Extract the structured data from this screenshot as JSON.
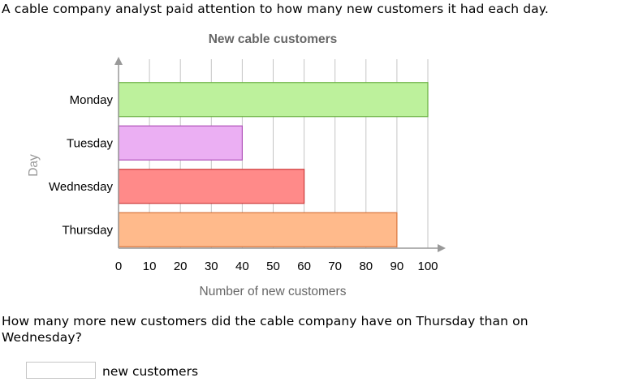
{
  "intro_text": "A cable company analyst paid attention to how many new customers it had each day.",
  "question_text": "How many more new customers did the cable company have on Thursday than on Wednesday?",
  "answer": {
    "value": "",
    "unit_label": "new customers"
  },
  "chart_data": {
    "type": "bar",
    "orientation": "horizontal",
    "title": "New cable customers",
    "xlabel": "Number of new customers",
    "ylabel": "Day",
    "categories": [
      "Monday",
      "Tuesday",
      "Wednesday",
      "Thursday"
    ],
    "values": [
      100,
      40,
      60,
      90
    ],
    "bar_fill_colors": [
      "#bdf19c",
      "#ebaff3",
      "#ff8a89",
      "#ffba8b"
    ],
    "bar_stroke_colors": [
      "#6ab142",
      "#b053b9",
      "#cd3b3b",
      "#d9743a"
    ],
    "xlim": [
      0,
      100
    ],
    "xticks": [
      0,
      10,
      20,
      30,
      40,
      50,
      60,
      70,
      80,
      90,
      100
    ],
    "grid": true,
    "legend": "none"
  }
}
